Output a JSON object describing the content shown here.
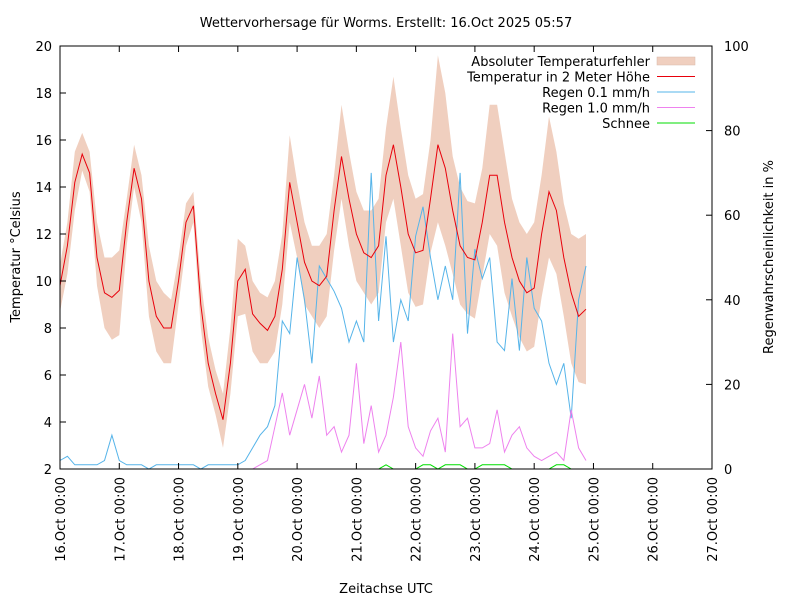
{
  "chart_data": {
    "type": "line",
    "title": "Wettervorhersage für Worms. Erstellt: 16.Oct 2025 05:57",
    "xlabel": "Zeitachse UTC",
    "ylabel": "Temperatur °Celsius",
    "y2label": "Regenwahrscheinlichkeit in %",
    "ylim": [
      2,
      20
    ],
    "y2lim": [
      0,
      100
    ],
    "xlim_days": [
      0,
      11
    ],
    "yticks": [
      "2",
      "4",
      "6",
      "8",
      "10",
      "12",
      "14",
      "16",
      "18",
      "20"
    ],
    "y2ticks": [
      "0",
      "20",
      "40",
      "60",
      "80",
      "100"
    ],
    "xticks": [
      "16.Oct 00:00",
      "17.Oct 00:00",
      "18.Oct 00:00",
      "19.Oct 00:00",
      "20.Oct 00:00",
      "21.Oct 00:00",
      "22.Oct 00:00",
      "23.Oct 00:00",
      "24.Oct 00:00",
      "25.Oct 00:00",
      "26.Oct 00:00",
      "27.Oct 00:00"
    ],
    "grid": false,
    "legend_position": "top-right",
    "x_step_hours": 3,
    "legend": [
      {
        "label": "Absoluter Temperaturfehler",
        "kind": "band",
        "color": "#f0cfbf"
      },
      {
        "label": "Temperatur in 2 Meter Höhe",
        "kind": "line",
        "color": "#e8000b"
      },
      {
        "label": "Regen 0.1 mm/h",
        "kind": "line",
        "color": "#56b4e9"
      },
      {
        "label": "Regen 1.0 mm/h",
        "kind": "line",
        "color": "#ee82ee"
      },
      {
        "label": "Schnee",
        "kind": "line",
        "color": "#00dd00"
      }
    ],
    "series": [
      {
        "name": "Temperatur in 2 Meter Höhe",
        "axis": "y1",
        "values": [
          9.8,
          11.5,
          14.2,
          15.4,
          14.6,
          11.0,
          9.5,
          9.3,
          9.6,
          12.5,
          14.8,
          13.5,
          10.0,
          8.5,
          8.0,
          8.0,
          10.0,
          12.5,
          13.2,
          9.0,
          6.5,
          5.2,
          4.1,
          6.5,
          10.0,
          10.5,
          8.6,
          8.2,
          7.9,
          8.5,
          10.5,
          14.2,
          12.5,
          10.8,
          10.0,
          9.8,
          10.2,
          13.0,
          15.3,
          13.5,
          12.0,
          11.2,
          11.0,
          11.5,
          14.5,
          15.8,
          14.0,
          12.0,
          11.2,
          11.3,
          13.5,
          15.8,
          14.8,
          13.0,
          11.5,
          11.0,
          10.9,
          12.5,
          14.5,
          14.5,
          12.5,
          11.0,
          10.0,
          9.5,
          9.7,
          12.0,
          13.8,
          13.0,
          11.0,
          9.5,
          8.5,
          8.8
        ]
      },
      {
        "name": "Absoluter Temperaturfehler (oberer Rand)",
        "axis": "y1",
        "values": [
          10.7,
          12.5,
          15.5,
          16.3,
          15.5,
          12.5,
          11.0,
          11.0,
          11.3,
          13.5,
          15.8,
          14.5,
          11.5,
          10.0,
          9.5,
          9.2,
          11.0,
          13.3,
          13.8,
          10.0,
          7.6,
          6.2,
          5.2,
          8.0,
          11.8,
          11.5,
          10.0,
          9.5,
          9.3,
          10.0,
          12.0,
          16.2,
          14.2,
          12.5,
          11.5,
          11.5,
          12.0,
          14.5,
          17.5,
          15.5,
          13.8,
          13.0,
          13.0,
          13.5,
          16.5,
          18.7,
          16.5,
          14.5,
          13.5,
          13.7,
          16.0,
          19.6,
          18.0,
          15.3,
          14.0,
          13.4,
          13.3,
          14.8,
          17.5,
          17.5,
          15.5,
          13.5,
          12.5,
          12.0,
          12.5,
          14.5,
          17.0,
          15.5,
          13.3,
          12.0,
          11.8,
          12.0
        ]
      },
      {
        "name": "Absoluter Temperaturfehler (unterer Rand)",
        "axis": "y1",
        "values": [
          8.7,
          10.3,
          13.0,
          14.7,
          13.8,
          9.8,
          8.0,
          7.5,
          7.7,
          11.5,
          14.0,
          12.5,
          8.5,
          7.0,
          6.5,
          6.5,
          9.0,
          11.5,
          12.5,
          8.0,
          5.5,
          4.3,
          2.9,
          5.2,
          8.5,
          8.6,
          7.0,
          6.5,
          6.5,
          7.0,
          9.0,
          12.5,
          11.0,
          9.0,
          8.5,
          8.0,
          8.5,
          11.3,
          13.5,
          11.5,
          10.0,
          9.5,
          9.0,
          9.5,
          12.5,
          13.5,
          11.5,
          9.5,
          8.9,
          9.0,
          11.2,
          12.5,
          11.5,
          10.3,
          9.0,
          8.6,
          8.4,
          10.2,
          12.0,
          11.5,
          9.5,
          8.5,
          7.6,
          7.0,
          7.2,
          9.3,
          11.0,
          10.3,
          8.5,
          6.5,
          5.7,
          5.6
        ]
      },
      {
        "name": "Regen 0.1 mm/h",
        "axis": "y2",
        "values": [
          2,
          3,
          1,
          1,
          1,
          1,
          2,
          8,
          2,
          1,
          1,
          1,
          0,
          1,
          1,
          1,
          1,
          1,
          1,
          0,
          1,
          1,
          1,
          1,
          1,
          2,
          5,
          8,
          10,
          15,
          35,
          32,
          50,
          40,
          25,
          48,
          45,
          42,
          38,
          30,
          35,
          30,
          70,
          35,
          55,
          30,
          40,
          35,
          55,
          62,
          50,
          40,
          48,
          40,
          70,
          32,
          52,
          45,
          50,
          30,
          28,
          45,
          28,
          50,
          38,
          35,
          25,
          20,
          25,
          12,
          40,
          48
        ]
      },
      {
        "name": "Regen 1.0 mm/h",
        "axis": "y2",
        "values": [
          0,
          0,
          0,
          0,
          0,
          0,
          0,
          0,
          0,
          0,
          0,
          0,
          0,
          0,
          0,
          0,
          0,
          0,
          0,
          0,
          0,
          0,
          0,
          0,
          0,
          0,
          0,
          1,
          2,
          10,
          18,
          8,
          14,
          20,
          12,
          22,
          8,
          10,
          4,
          8,
          25,
          6,
          15,
          4,
          8,
          17,
          30,
          10,
          5,
          3,
          9,
          12,
          4,
          32,
          10,
          12,
          5,
          5,
          6,
          14,
          4,
          8,
          10,
          5,
          3,
          2,
          3,
          4,
          2,
          14,
          5,
          2
        ]
      },
      {
        "name": "Schnee",
        "axis": "y2",
        "values": [
          0,
          0,
          0,
          0,
          0,
          0,
          0,
          0,
          0,
          0,
          0,
          0,
          0,
          0,
          0,
          0,
          0,
          0,
          0,
          0,
          0,
          0,
          0,
          0,
          0,
          0,
          0,
          0,
          0,
          0,
          0,
          0,
          0,
          0,
          0,
          0,
          0,
          0,
          0,
          0,
          0,
          0,
          0,
          0,
          1,
          0,
          0,
          0,
          0,
          1,
          1,
          0,
          1,
          1,
          1,
          0,
          0,
          1,
          1,
          1,
          1,
          0,
          0,
          0,
          0,
          0,
          0,
          1,
          1,
          0,
          0,
          0
        ]
      }
    ]
  }
}
